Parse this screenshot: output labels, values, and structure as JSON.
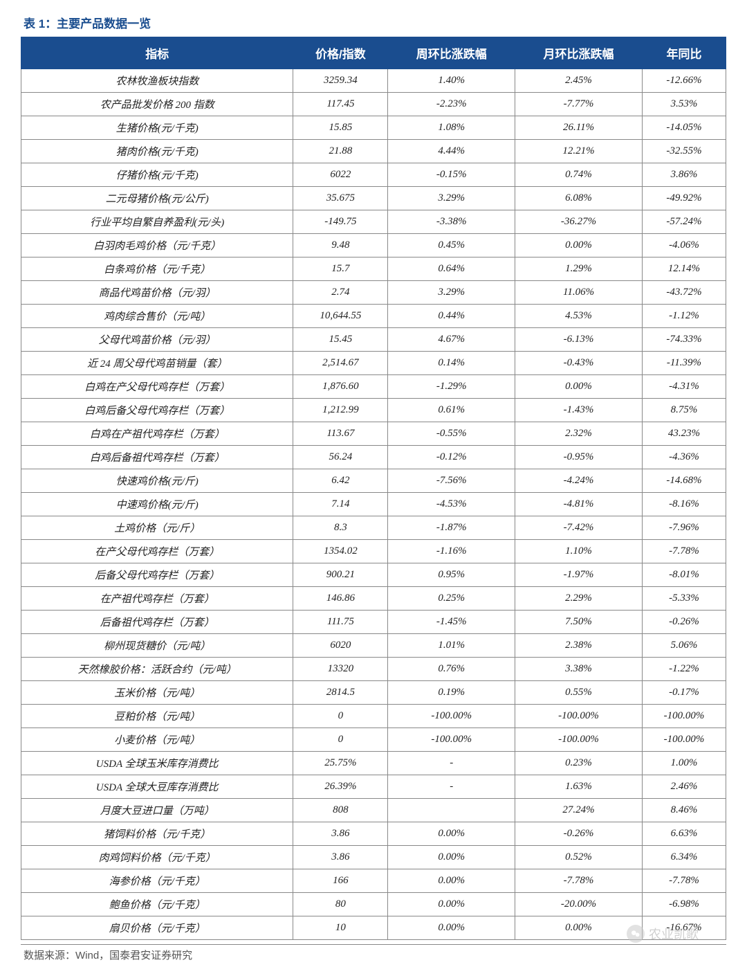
{
  "title": "表 1：主要产品数据一览",
  "source": "数据来源：Wind，国泰君安证券研究",
  "watermark_text": "农业凯歌",
  "table": {
    "header_bg": "#1a4d8f",
    "header_text_color": "#ffffff",
    "border_color": "#888888",
    "cell_text_color": "#222222",
    "columns": [
      "指标",
      "价格/指数",
      "周环比涨跌幅",
      "月环比涨跌幅",
      "年同比"
    ],
    "rows": [
      [
        "农林牧渔板块指数",
        "3259.34",
        "1.40%",
        "2.45%",
        "-12.66%"
      ],
      [
        "农产品批发价格 200 指数",
        "117.45",
        "-2.23%",
        "-7.77%",
        "3.53%"
      ],
      [
        "生猪价格(元/千克)",
        "15.85",
        "1.08%",
        "26.11%",
        "-14.05%"
      ],
      [
        "猪肉价格(元/千克)",
        "21.88",
        "4.44%",
        "12.21%",
        "-32.55%"
      ],
      [
        "仔猪价格(元/千克)",
        "6022",
        "-0.15%",
        "0.74%",
        "3.86%"
      ],
      [
        "二元母猪价格(元/公斤)",
        "35.675",
        "3.29%",
        "6.08%",
        "-49.92%"
      ],
      [
        "行业平均自繁自养盈利(元/头)",
        "-149.75",
        "-3.38%",
        "-36.27%",
        "-57.24%"
      ],
      [
        "白羽肉毛鸡价格（元/千克）",
        "9.48",
        "0.45%",
        "0.00%",
        "-4.06%"
      ],
      [
        "白条鸡价格（元/千克）",
        "15.7",
        "0.64%",
        "1.29%",
        "12.14%"
      ],
      [
        "商品代鸡苗价格（元/羽）",
        "2.74",
        "3.29%",
        "11.06%",
        "-43.72%"
      ],
      [
        "鸡肉综合售价（元/吨）",
        "10,644.55",
        "0.44%",
        "4.53%",
        "-1.12%"
      ],
      [
        "父母代鸡苗价格（元/羽）",
        "15.45",
        "4.67%",
        "-6.13%",
        "-74.33%"
      ],
      [
        "近 24 周父母代鸡苗销量（套）",
        "2,514.67",
        "0.14%",
        "-0.43%",
        "-11.39%"
      ],
      [
        "白鸡在产父母代鸡存栏（万套）",
        "1,876.60",
        "-1.29%",
        "0.00%",
        "-4.31%"
      ],
      [
        "白鸡后备父母代鸡存栏（万套）",
        "1,212.99",
        "0.61%",
        "-1.43%",
        "8.75%"
      ],
      [
        "白鸡在产祖代鸡存栏（万套）",
        "113.67",
        "-0.55%",
        "2.32%",
        "43.23%"
      ],
      [
        "白鸡后备祖代鸡存栏（万套）",
        "56.24",
        "-0.12%",
        "-0.95%",
        "-4.36%"
      ],
      [
        "快速鸡价格(元/斤)",
        "6.42",
        "-7.56%",
        "-4.24%",
        "-14.68%"
      ],
      [
        "中速鸡价格(元/斤)",
        "7.14",
        "-4.53%",
        "-4.81%",
        "-8.16%"
      ],
      [
        "土鸡价格（元/斤）",
        "8.3",
        "-1.87%",
        "-7.42%",
        "-7.96%"
      ],
      [
        "在产父母代鸡存栏（万套）",
        "1354.02",
        "-1.16%",
        "1.10%",
        "-7.78%"
      ],
      [
        "后备父母代鸡存栏（万套）",
        "900.21",
        "0.95%",
        "-1.97%",
        "-8.01%"
      ],
      [
        "在产祖代鸡存栏（万套）",
        "146.86",
        "0.25%",
        "2.29%",
        "-5.33%"
      ],
      [
        "后备祖代鸡存栏（万套）",
        "111.75",
        "-1.45%",
        "7.50%",
        "-0.26%"
      ],
      [
        "柳州现货糖价（元/吨）",
        "6020",
        "1.01%",
        "2.38%",
        "5.06%"
      ],
      [
        "天然橡胶价格：活跃合约（元/吨）",
        "13320",
        "0.76%",
        "3.38%",
        "-1.22%"
      ],
      [
        "玉米价格（元/吨）",
        "2814.5",
        "0.19%",
        "0.55%",
        "-0.17%"
      ],
      [
        "豆粕价格（元/吨）",
        "0",
        "-100.00%",
        "-100.00%",
        "-100.00%"
      ],
      [
        "小麦价格（元/吨）",
        "0",
        "-100.00%",
        "-100.00%",
        "-100.00%"
      ],
      [
        "USDA 全球玉米库存消费比",
        "25.75%",
        "-",
        "0.23%",
        "1.00%"
      ],
      [
        "USDA 全球大豆库存消费比",
        "26.39%",
        "-",
        "1.63%",
        "2.46%"
      ],
      [
        "月度大豆进口量（万吨）",
        "808",
        "",
        "27.24%",
        "8.46%"
      ],
      [
        "猪饲料价格（元/千克）",
        "3.86",
        "0.00%",
        "-0.26%",
        "6.63%"
      ],
      [
        "肉鸡饲料价格（元/千克）",
        "3.86",
        "0.00%",
        "0.52%",
        "6.34%"
      ],
      [
        "海参价格（元/千克）",
        "166",
        "0.00%",
        "-7.78%",
        "-7.78%"
      ],
      [
        "鲍鱼价格（元/千克）",
        "80",
        "0.00%",
        "-20.00%",
        "-6.98%"
      ],
      [
        "扇贝价格（元/千克）",
        "10",
        "0.00%",
        "0.00%",
        "-16.67%"
      ]
    ]
  }
}
